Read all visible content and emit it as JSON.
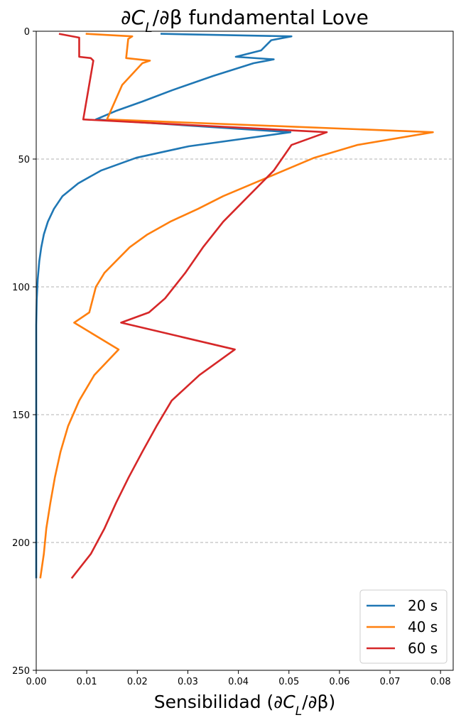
{
  "chart_data": {
    "type": "line",
    "title": "∂C_L/∂β fundamental Love",
    "title_parts": [
      "∂",
      "C",
      "L",
      "/∂β fundamental Love"
    ],
    "xlabel": "Sensibilidad (∂C_L/∂β)",
    "xlabel_parts": [
      "Sensibilidad (∂",
      "C",
      "L",
      "/∂β)"
    ],
    "ylabel": "",
    "xlim": [
      0.0,
      0.0825
    ],
    "ylim": [
      250,
      0
    ],
    "y_inverted": true,
    "xticks": [
      0.0,
      0.01,
      0.02,
      0.03,
      0.04,
      0.05,
      0.06,
      0.07,
      0.08
    ],
    "xtick_labels": [
      "0.00",
      "0.01",
      "0.02",
      "0.03",
      "0.04",
      "0.05",
      "0.06",
      "0.07",
      "0.08"
    ],
    "yticks": [
      0,
      50,
      100,
      150,
      200,
      250
    ],
    "ytick_labels": [
      "0",
      "50",
      "100",
      "150",
      "200",
      "250"
    ],
    "grid": {
      "axis": "y",
      "lines_at": [
        50,
        100,
        150,
        200
      ],
      "style": "dashed",
      "color": "#b0b0b0"
    },
    "legend": {
      "placement": "bottom-right"
    },
    "series": [
      {
        "name": "20 s",
        "color": "#1f77b4",
        "points": [
          [
            0.0246,
            1
          ],
          [
            0.0505,
            2
          ],
          [
            0.0465,
            3.5
          ],
          [
            0.0445,
            7.5
          ],
          [
            0.0395,
            10
          ],
          [
            0.047,
            11
          ],
          [
            0.043,
            12.5
          ],
          [
            0.035,
            17.5
          ],
          [
            0.027,
            23
          ],
          [
            0.021,
            27.5
          ],
          [
            0.016,
            31
          ],
          [
            0.0118,
            34.5
          ],
          [
            0.0503,
            39.5
          ],
          [
            0.0302,
            45
          ],
          [
            0.0198,
            49.5
          ],
          [
            0.0128,
            54.5
          ],
          [
            0.0083,
            59.5
          ],
          [
            0.0052,
            64.5
          ],
          [
            0.0035,
            69.5
          ],
          [
            0.0023,
            74.5
          ],
          [
            0.0015,
            79.5
          ],
          [
            0.001,
            84.5
          ],
          [
            0.0006,
            90
          ],
          [
            0.0003,
            97
          ],
          [
            0.0001,
            105
          ],
          [
            0.0,
            115
          ],
          [
            0.0,
            214
          ]
        ]
      },
      {
        "name": "40 s",
        "color": "#ff7f0e",
        "points": [
          [
            0.0098,
            1
          ],
          [
            0.019,
            2
          ],
          [
            0.0182,
            3
          ],
          [
            0.0178,
            10.5
          ],
          [
            0.0225,
            11.5
          ],
          [
            0.021,
            12.5
          ],
          [
            0.017,
            21
          ],
          [
            0.014,
            34.5
          ],
          [
            0.0785,
            39.5
          ],
          [
            0.0635,
            44.5
          ],
          [
            0.055,
            49.5
          ],
          [
            0.049,
            54.5
          ],
          [
            0.043,
            59.5
          ],
          [
            0.037,
            64.5
          ],
          [
            0.032,
            69.5
          ],
          [
            0.0265,
            74.5
          ],
          [
            0.022,
            79.5
          ],
          [
            0.0185,
            84.5
          ],
          [
            0.016,
            89.5
          ],
          [
            0.0135,
            94.5
          ],
          [
            0.0118,
            100
          ],
          [
            0.0105,
            110
          ],
          [
            0.0075,
            114
          ],
          [
            0.0163,
            124.5
          ],
          [
            0.0115,
            134.5
          ],
          [
            0.0085,
            144.5
          ],
          [
            0.0063,
            154.5
          ],
          [
            0.0048,
            164.5
          ],
          [
            0.0037,
            174.5
          ],
          [
            0.0028,
            184.5
          ],
          [
            0.002,
            194.5
          ],
          [
            0.0015,
            204.5
          ],
          [
            0.0008,
            214
          ]
        ]
      },
      {
        "name": "60 s",
        "color": "#d62728",
        "points": [
          [
            0.0045,
            1
          ],
          [
            0.0085,
            2.5
          ],
          [
            0.0085,
            10
          ],
          [
            0.0108,
            10.5
          ],
          [
            0.0113,
            11.5
          ],
          [
            0.0093,
            34.5
          ],
          [
            0.0575,
            39.5
          ],
          [
            0.0505,
            44.5
          ],
          [
            0.047,
            54.5
          ],
          [
            0.042,
            64.5
          ],
          [
            0.037,
            74.5
          ],
          [
            0.033,
            84.5
          ],
          [
            0.0295,
            94.5
          ],
          [
            0.0255,
            104.5
          ],
          [
            0.0223,
            110
          ],
          [
            0.0168,
            114
          ],
          [
            0.0393,
            124.5
          ],
          [
            0.0323,
            134.5
          ],
          [
            0.0268,
            144.5
          ],
          [
            0.0238,
            154.5
          ],
          [
            0.021,
            164.5
          ],
          [
            0.0183,
            174.5
          ],
          [
            0.0158,
            184.5
          ],
          [
            0.0135,
            194.5
          ],
          [
            0.0108,
            204.5
          ],
          [
            0.007,
            214
          ]
        ]
      }
    ]
  }
}
